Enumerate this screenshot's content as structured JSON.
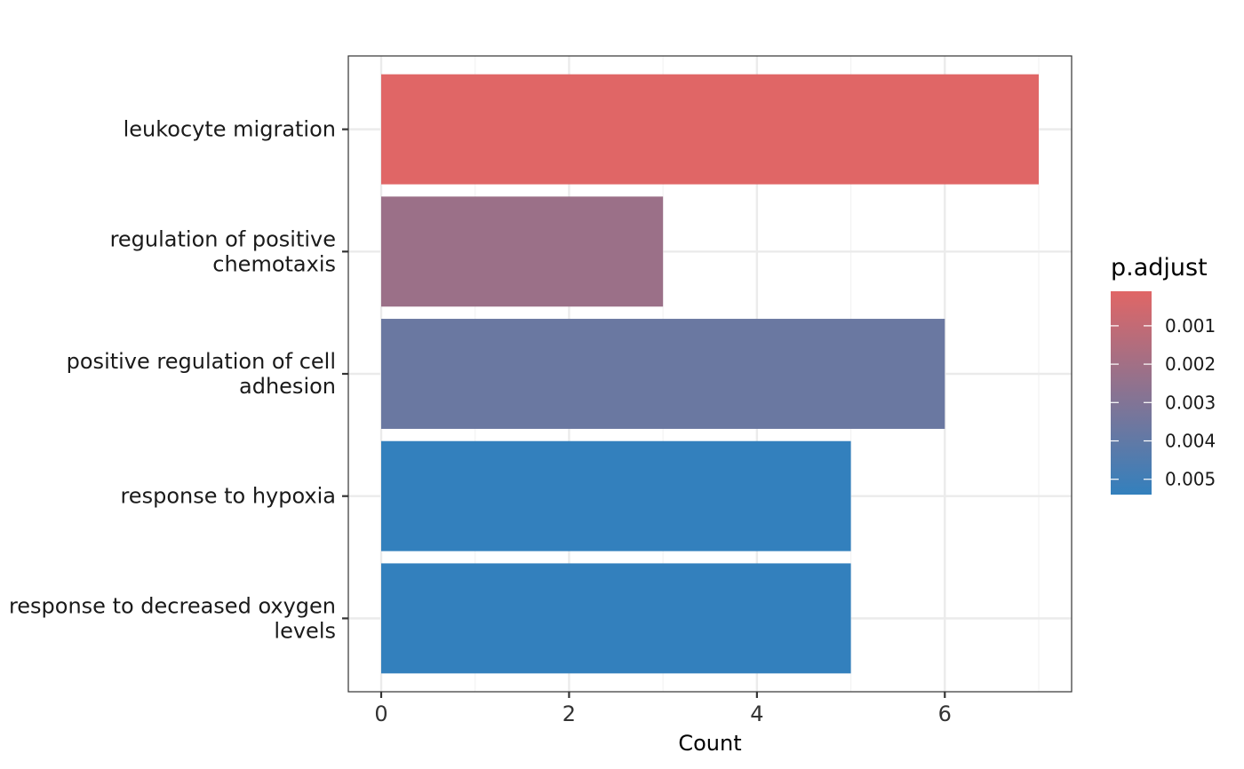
{
  "chart_data": {
    "type": "bar",
    "orientation": "horizontal",
    "categories": [
      [
        "leukocyte migration"
      ],
      [
        "regulation of positive",
        "chemotaxis"
      ],
      [
        "positive regulation of cell",
        "adhesion"
      ],
      [
        "response to hypoxia"
      ],
      [
        "response to decreased oxygen",
        "levels"
      ]
    ],
    "values": [
      7,
      3,
      6,
      5,
      5
    ],
    "p_adjust": [
      0.0001,
      0.0022,
      0.0037,
      0.0054,
      0.0054
    ],
    "xlabel": "Count",
    "xlim": [
      -0.35,
      7.35
    ],
    "xticks": [
      "0",
      "2",
      "4",
      "6"
    ],
    "xtick_values": [
      0,
      2,
      4,
      6
    ],
    "grid": true,
    "legend": {
      "title": "p.adjust",
      "placement": "right",
      "labels": [
        "0.001",
        "0.002",
        "0.003",
        "0.004",
        "0.005"
      ],
      "label_values": [
        0.001,
        0.002,
        0.003,
        0.004,
        0.005
      ],
      "range": [
        0.0001,
        0.0054
      ],
      "color_low": "#E06666",
      "color_high": "#3380BD"
    }
  }
}
